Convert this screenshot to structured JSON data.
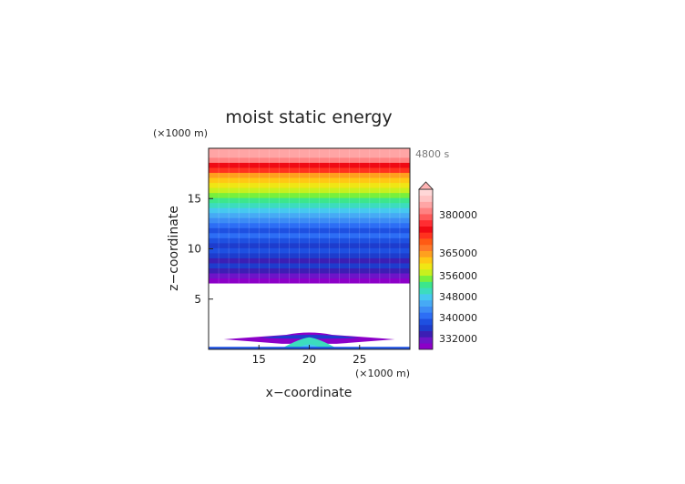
{
  "chart_data": {
    "type": "heatmap",
    "title": "moist static energy",
    "xlabel": "x−coordinate",
    "ylabel": "z−coordinate",
    "x_unit": "(×1000 m)",
    "y_unit": "(×1000 m)",
    "time_label": "4800 s",
    "xlim": [
      10,
      30
    ],
    "ylim": [
      0,
      20
    ],
    "x_ticks": [
      "15",
      "20",
      "25"
    ],
    "x_tick_values": [
      15,
      20,
      25
    ],
    "y_ticks": [
      "5",
      "10",
      "15"
    ],
    "y_tick_values": [
      5,
      10,
      15
    ],
    "grid": true,
    "colorbar": {
      "labels": [
        "380000",
        "365000",
        "356000",
        "348000",
        "340000",
        "332000"
      ],
      "levels_low_to_high": [
        329000,
        332000,
        334000,
        336000,
        338000,
        340000,
        342000,
        344000,
        346000,
        348000,
        350000,
        352000,
        354000,
        356000,
        358000,
        360000,
        362500,
        365000,
        368000,
        371000,
        374000,
        377000,
        380000,
        383000,
        386000,
        389000
      ],
      "colors_low_to_high": [
        "#8c00c8",
        "#6e14c8",
        "#3c1eb4",
        "#1e3ccd",
        "#1e50e1",
        "#2d6ef5",
        "#3c8cf5",
        "#46aaf5",
        "#46c8f0",
        "#3cdcbe",
        "#3ce68c",
        "#78f03c",
        "#c8f01e",
        "#f0e614",
        "#ffc814",
        "#ffa01e",
        "#ff7828",
        "#ff5a14",
        "#ff321e",
        "#f00a14",
        "#ff2d32",
        "#ff5a5a",
        "#ff8282",
        "#ffa5a5",
        "#ffc3c3",
        "#ffd7d7"
      ],
      "extend_max": true
    },
    "upper_band_bottom_z": 6.6,
    "upper_field": {
      "z_values": [
        6.6,
        7.1,
        7.6,
        8.1,
        8.6,
        9.1,
        9.6,
        10.1,
        10.6,
        11.1,
        11.6,
        12.1,
        12.6,
        13.1,
        13.6,
        14.1,
        14.6,
        15.1,
        15.6,
        16.1,
        16.6,
        17.1,
        17.6,
        18.1,
        18.6,
        19.1
      ],
      "level_index": [
        0,
        1,
        2,
        3,
        2,
        3,
        4,
        3,
        4,
        5,
        4,
        5,
        6,
        7,
        8,
        9,
        10,
        11,
        12,
        13,
        14,
        15,
        18,
        19,
        22,
        23
      ]
    },
    "surface_feature": {
      "x_range": [
        11.5,
        28.5
      ],
      "z_max": 1.9,
      "peak_x": 20,
      "colors": [
        "#8c00c8",
        "#1e3ccd",
        "#46c8f0",
        "#3cdcbe"
      ]
    }
  }
}
